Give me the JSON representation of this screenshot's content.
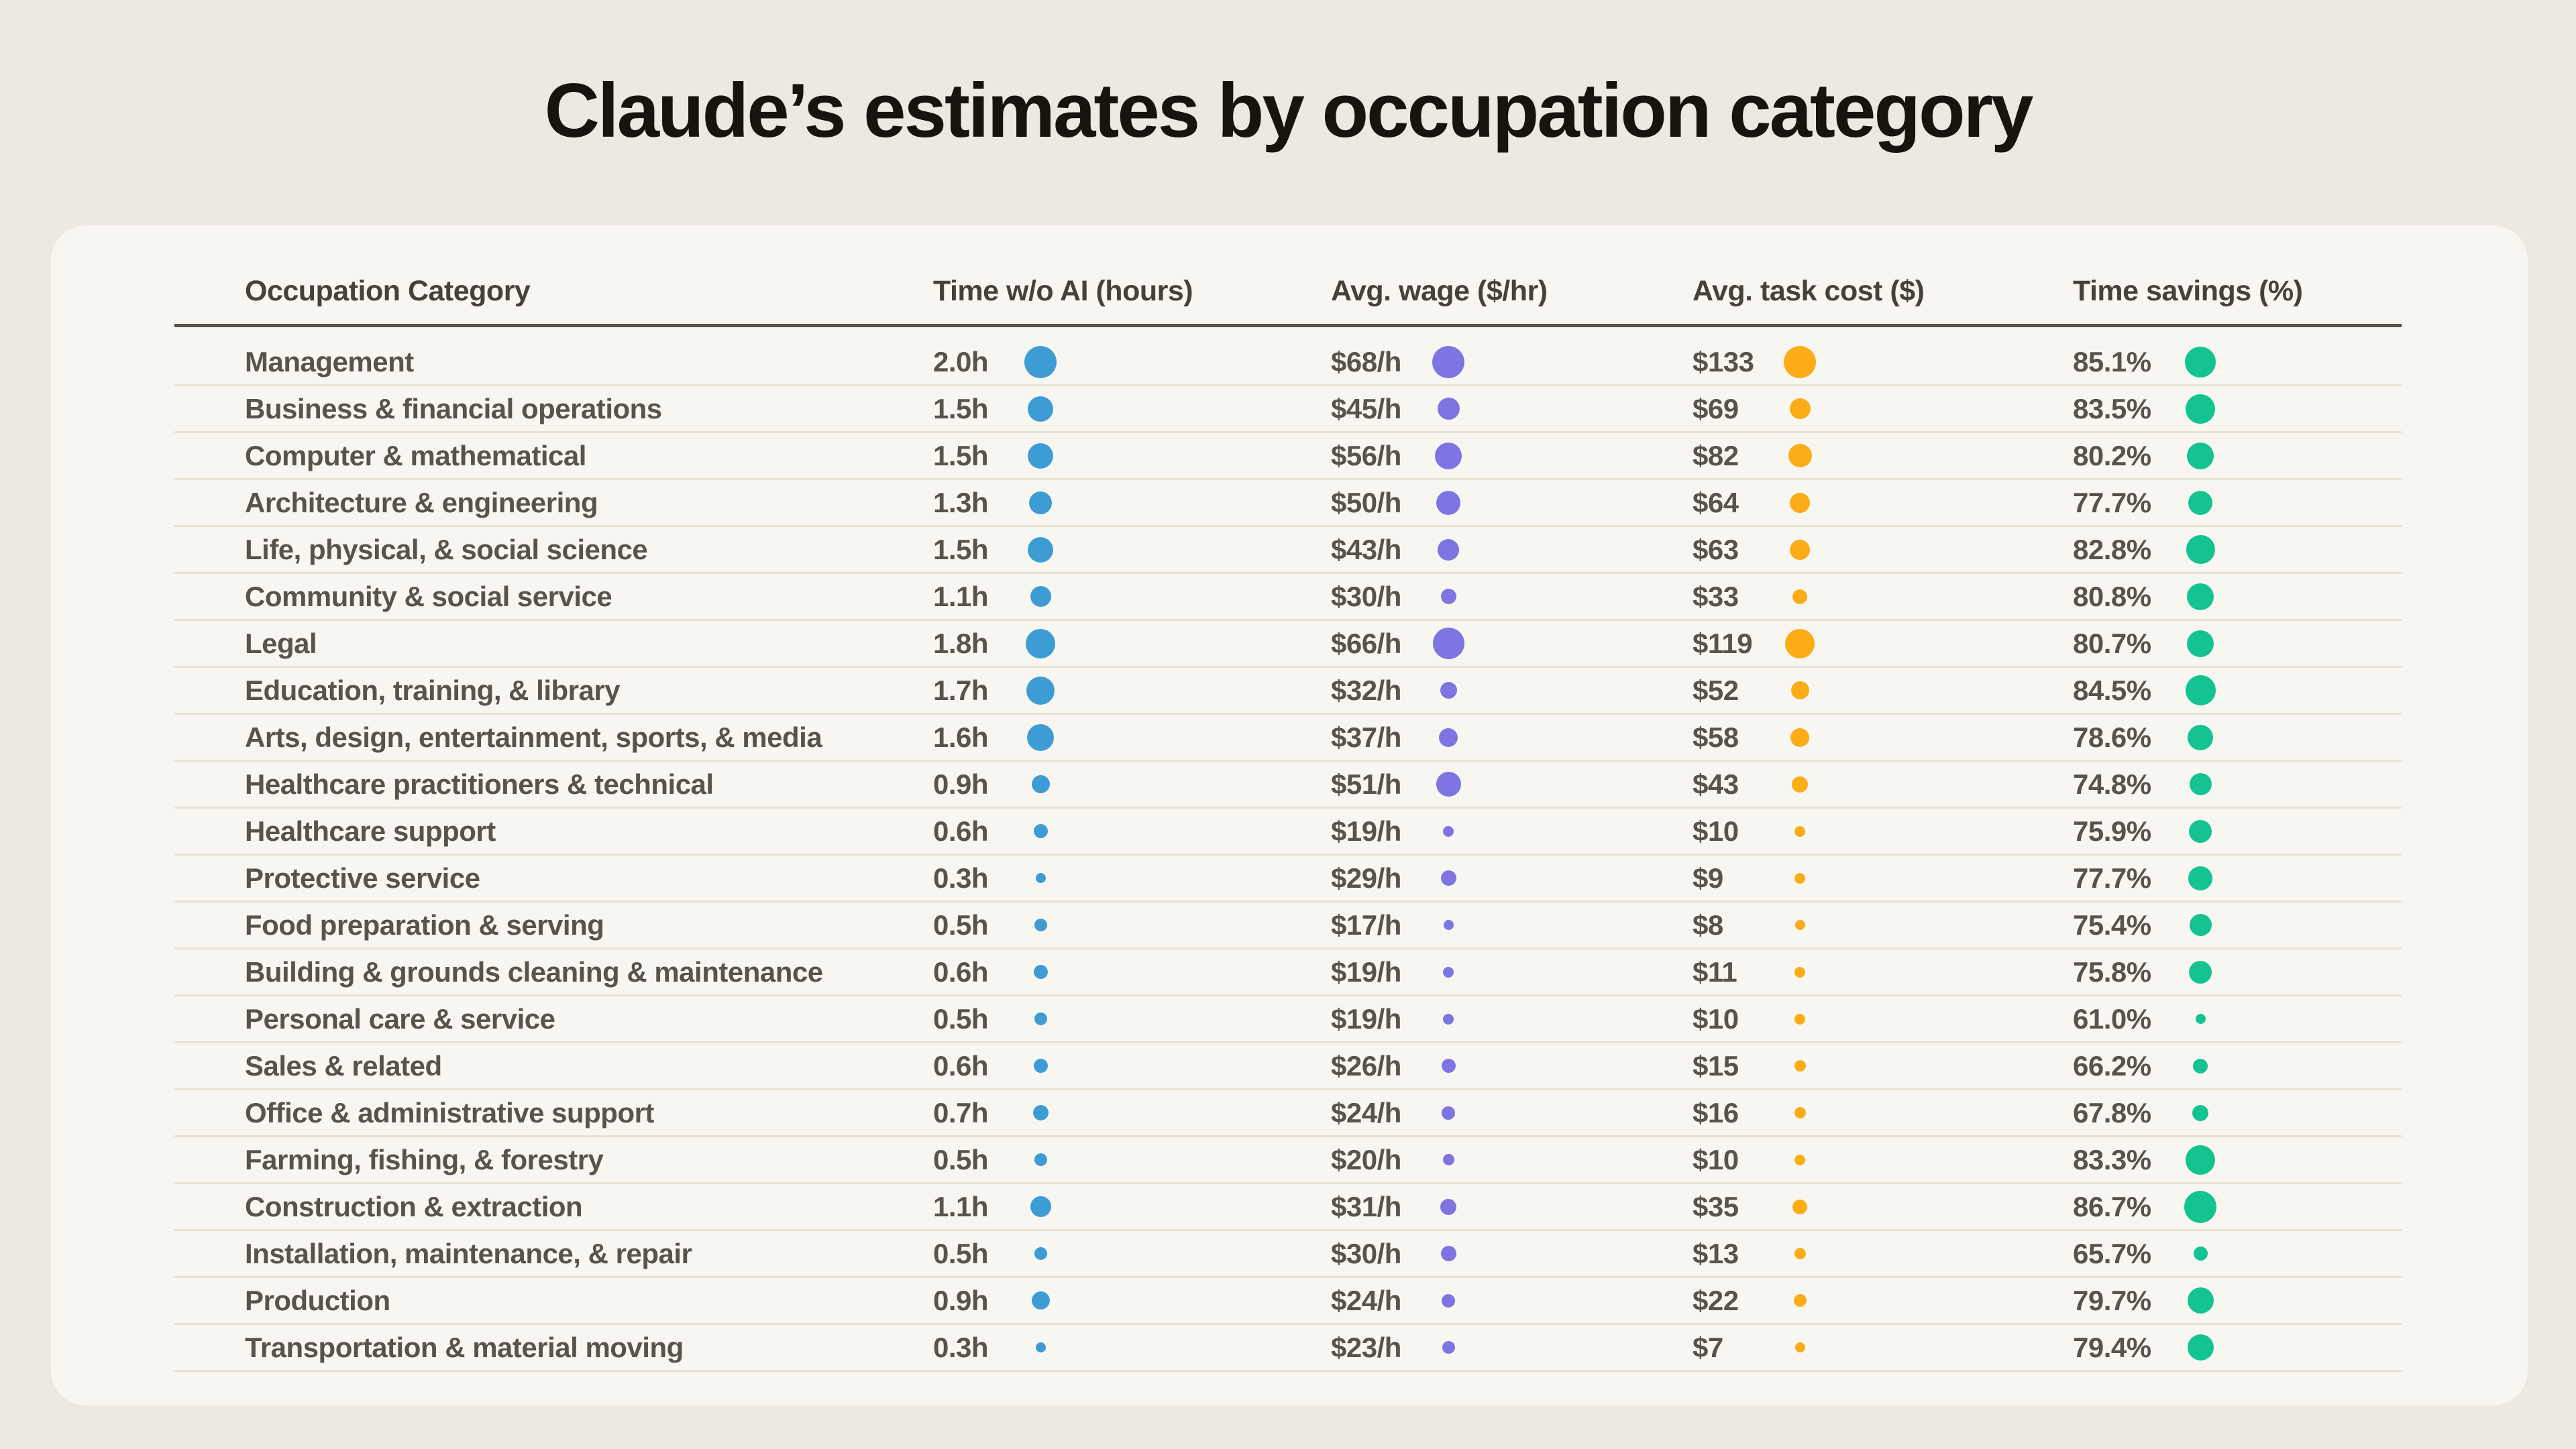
{
  "page": {
    "background": "#EDE8E0",
    "card_background": "#F8F6F0"
  },
  "title": "Claude’s estimates by occupation category",
  "colors": {
    "time_dot": "#3E9CD5",
    "wage_dot": "#7E74E2",
    "cost_dot": "#FBAC17",
    "savings_dot": "#13C392",
    "header_rule": "#55534B",
    "row_separator": "#E7E2D4",
    "text": "#57544C",
    "title_text": "#17140F"
  },
  "table": {
    "headers": [
      "Occupation Category",
      "Time w/o AI (hours)",
      "Avg. wage ($/hr)",
      "Avg. task cost ($)",
      "Time savings (%)"
    ],
    "rows": [
      {
        "category": "Management",
        "time": "2.0h",
        "wage": "$68/h",
        "cost": "$133",
        "savings": "85.1%",
        "time_v": 2.0,
        "wage_v": 68,
        "cost_v": 133,
        "savings_v": 85.1
      },
      {
        "category": "Business & financial operations",
        "time": "1.5h",
        "wage": "$45/h",
        "cost": "$69",
        "savings": "83.5%",
        "time_v": 1.5,
        "wage_v": 45,
        "cost_v": 69,
        "savings_v": 83.5
      },
      {
        "category": "Computer & mathematical",
        "time": "1.5h",
        "wage": "$56/h",
        "cost": "$82",
        "savings": "80.2%",
        "time_v": 1.5,
        "wage_v": 56,
        "cost_v": 82,
        "savings_v": 80.2
      },
      {
        "category": "Architecture & engineering",
        "time": "1.3h",
        "wage": "$50/h",
        "cost": "$64",
        "savings": "77.7%",
        "time_v": 1.3,
        "wage_v": 50,
        "cost_v": 64,
        "savings_v": 77.7
      },
      {
        "category": "Life, physical, & social science",
        "time": "1.5h",
        "wage": "$43/h",
        "cost": "$63",
        "savings": "82.8%",
        "time_v": 1.5,
        "wage_v": 43,
        "cost_v": 63,
        "savings_v": 82.8
      },
      {
        "category": "Community & social service",
        "time": "1.1h",
        "wage": "$30/h",
        "cost": "$33",
        "savings": "80.8%",
        "time_v": 1.1,
        "wage_v": 30,
        "cost_v": 33,
        "savings_v": 80.8
      },
      {
        "category": "Legal",
        "time": "1.8h",
        "wage": "$66/h",
        "cost": "$119",
        "savings": "80.7%",
        "time_v": 1.8,
        "wage_v": 66,
        "cost_v": 119,
        "savings_v": 80.7
      },
      {
        "category": "Education, training, & library",
        "time": "1.7h",
        "wage": "$32/h",
        "cost": "$52",
        "savings": "84.5%",
        "time_v": 1.7,
        "wage_v": 32,
        "cost_v": 52,
        "savings_v": 84.5
      },
      {
        "category": "Arts, design, entertainment, sports, & media",
        "time": "1.6h",
        "wage": "$37/h",
        "cost": "$58",
        "savings": "78.6%",
        "time_v": 1.6,
        "wage_v": 37,
        "cost_v": 58,
        "savings_v": 78.6
      },
      {
        "category": "Healthcare practitioners & technical",
        "time": "0.9h",
        "wage": "$51/h",
        "cost": "$43",
        "savings": "74.8%",
        "time_v": 0.9,
        "wage_v": 51,
        "cost_v": 43,
        "savings_v": 74.8
      },
      {
        "category": "Healthcare support",
        "time": "0.6h",
        "wage": "$19/h",
        "cost": "$10",
        "savings": "75.9%",
        "time_v": 0.6,
        "wage_v": 19,
        "cost_v": 10,
        "savings_v": 75.9
      },
      {
        "category": "Protective service",
        "time": "0.3h",
        "wage": "$29/h",
        "cost": "$9",
        "savings": "77.7%",
        "time_v": 0.3,
        "wage_v": 29,
        "cost_v": 9,
        "savings_v": 77.7
      },
      {
        "category": "Food preparation & serving",
        "time": "0.5h",
        "wage": "$17/h",
        "cost": "$8",
        "savings": "75.4%",
        "time_v": 0.5,
        "wage_v": 17,
        "cost_v": 8,
        "savings_v": 75.4
      },
      {
        "category": "Building & grounds cleaning & maintenance",
        "time": "0.6h",
        "wage": "$19/h",
        "cost": "$11",
        "savings": "75.8%",
        "time_v": 0.6,
        "wage_v": 19,
        "cost_v": 11,
        "savings_v": 75.8
      },
      {
        "category": "Personal care & service",
        "time": "0.5h",
        "wage": "$19/h",
        "cost": "$10",
        "savings": "61.0%",
        "time_v": 0.5,
        "wage_v": 19,
        "cost_v": 10,
        "savings_v": 61.0
      },
      {
        "category": "Sales & related",
        "time": "0.6h",
        "wage": "$26/h",
        "cost": "$15",
        "savings": "66.2%",
        "time_v": 0.6,
        "wage_v": 26,
        "cost_v": 15,
        "savings_v": 66.2
      },
      {
        "category": "Office & administrative support",
        "time": "0.7h",
        "wage": "$24/h",
        "cost": "$16",
        "savings": "67.8%",
        "time_v": 0.7,
        "wage_v": 24,
        "cost_v": 16,
        "savings_v": 67.8
      },
      {
        "category": "Farming, fishing, & forestry",
        "time": "0.5h",
        "wage": "$20/h",
        "cost": "$10",
        "savings": "83.3%",
        "time_v": 0.5,
        "wage_v": 20,
        "cost_v": 10,
        "savings_v": 83.3
      },
      {
        "category": "Construction & extraction",
        "time": "1.1h",
        "wage": "$31/h",
        "cost": "$35",
        "savings": "86.7%",
        "time_v": 1.1,
        "wage_v": 31,
        "cost_v": 35,
        "savings_v": 86.7
      },
      {
        "category": "Installation, maintenance, & repair",
        "time": "0.5h",
        "wage": "$30/h",
        "cost": "$13",
        "savings": "65.7%",
        "time_v": 0.5,
        "wage_v": 30,
        "cost_v": 13,
        "savings_v": 65.7
      },
      {
        "category": "Production",
        "time": "0.9h",
        "wage": "$24/h",
        "cost": "$22",
        "savings": "79.7%",
        "time_v": 0.9,
        "wage_v": 24,
        "cost_v": 22,
        "savings_v": 79.7
      },
      {
        "category": "Transportation & material moving",
        "time": "0.3h",
        "wage": "$23/h",
        "cost": "$7",
        "savings": "79.4%",
        "time_v": 0.3,
        "wage_v": 23,
        "cost_v": 7,
        "savings_v": 79.4
      }
    ]
  },
  "chart_data": {
    "type": "table",
    "title": "Claude’s estimates by occupation category",
    "columns": [
      "Occupation Category",
      "Time w/o AI (hours)",
      "Avg. wage ($/hr)",
      "Avg. task cost ($)",
      "Time savings (%)"
    ],
    "categories": [
      "Management",
      "Business & financial operations",
      "Computer & mathematical",
      "Architecture & engineering",
      "Life, physical, & social science",
      "Community & social service",
      "Legal",
      "Education, training, & library",
      "Arts, design, entertainment, sports, & media",
      "Healthcare practitioners & technical",
      "Healthcare support",
      "Protective service",
      "Food preparation & serving",
      "Building & grounds cleaning & maintenance",
      "Personal care & service",
      "Sales & related",
      "Office & administrative support",
      "Farming, fishing, & forestry",
      "Construction & extraction",
      "Installation, maintenance, & repair",
      "Production",
      "Transportation & material moving"
    ],
    "series": [
      {
        "name": "Time w/o AI (hours)",
        "unit": "h",
        "color": "#3E9CD5",
        "values": [
          2.0,
          1.5,
          1.5,
          1.3,
          1.5,
          1.1,
          1.8,
          1.7,
          1.6,
          0.9,
          0.6,
          0.3,
          0.5,
          0.6,
          0.5,
          0.6,
          0.7,
          0.5,
          1.1,
          0.5,
          0.9,
          0.3
        ]
      },
      {
        "name": "Avg. wage ($/hr)",
        "unit": "$/h",
        "color": "#7E74E2",
        "values": [
          68,
          45,
          56,
          50,
          43,
          30,
          66,
          32,
          37,
          51,
          19,
          29,
          17,
          19,
          19,
          26,
          24,
          20,
          31,
          30,
          24,
          23
        ]
      },
      {
        "name": "Avg. task cost ($)",
        "unit": "$",
        "color": "#FBAC17",
        "values": [
          133,
          69,
          82,
          64,
          63,
          33,
          119,
          52,
          58,
          43,
          10,
          9,
          8,
          11,
          10,
          15,
          16,
          10,
          35,
          13,
          22,
          7
        ]
      },
      {
        "name": "Time savings (%)",
        "unit": "%",
        "color": "#13C392",
        "values": [
          85.1,
          83.5,
          80.2,
          77.7,
          82.8,
          80.8,
          80.7,
          84.5,
          78.6,
          74.8,
          75.9,
          77.7,
          75.4,
          75.8,
          61.0,
          66.2,
          67.8,
          83.3,
          86.7,
          65.7,
          79.7,
          79.4
        ]
      }
    ],
    "encoding_note": "dot size per column scales with value (min-max scaled)",
    "legend_position": "none",
    "grid": "horizontal row separators"
  }
}
